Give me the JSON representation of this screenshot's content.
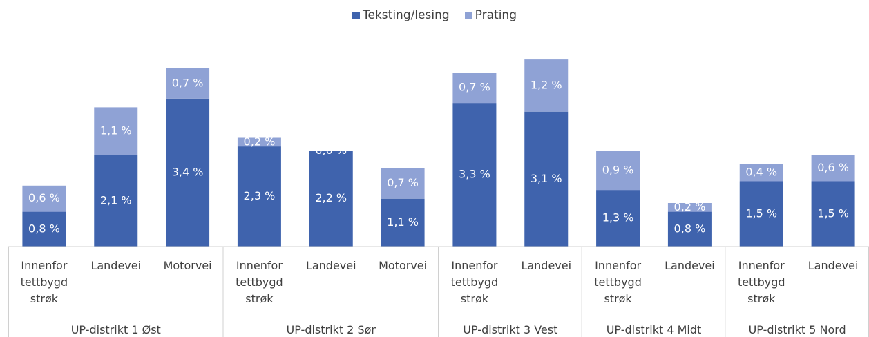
{
  "chart_data": {
    "type": "bar",
    "stacked": true,
    "legend": "top",
    "groups": [
      {
        "label": "UP-distrikt 1 Øst",
        "categories": [
          "Innenfor tettbygd strøk",
          "Landevei",
          "Motorvei"
        ]
      },
      {
        "label": "UP-distrikt 2 Sør",
        "categories": [
          "Innenfor tettbygd strøk",
          "Landevei",
          "Motorvei"
        ]
      },
      {
        "label": "UP-distrikt 3 Vest",
        "categories": [
          "Innenfor tettbygd strøk",
          "Landevei"
        ]
      },
      {
        "label": "UP-distrikt 4 Midt",
        "categories": [
          "Innenfor tettbygd strøk",
          "Landevei"
        ]
      },
      {
        "label": "UP-distrikt 5 Nord",
        "categories": [
          "Innenfor tettbygd strøk",
          "Landevei"
        ]
      }
    ],
    "series": [
      {
        "name": "Teksting/lesing",
        "color": "#3f63ad",
        "values": [
          0.8,
          2.1,
          3.4,
          2.3,
          2.2,
          1.1,
          3.3,
          3.1,
          1.3,
          0.8,
          1.5,
          1.5
        ],
        "value_labels": [
          "0,8 %",
          "2,1 %",
          "3,4 %",
          "2,3 %",
          "2,2 %",
          "1,1 %",
          "3,3 %",
          "3,1 %",
          "1,3 %",
          "0,8 %",
          "1,5 %",
          "1,5 %"
        ]
      },
      {
        "name": "Prating",
        "color": "#8fa2d5",
        "values": [
          0.6,
          1.1,
          0.7,
          0.2,
          0.0,
          0.7,
          0.7,
          1.2,
          0.9,
          0.2,
          0.4,
          0.6
        ],
        "value_labels": [
          "0,6 %",
          "1,1 %",
          "0,7 %",
          "0,2 %",
          "0,0 %",
          "0,7 %",
          "0,7 %",
          "1,2 %",
          "0,9 %",
          "0,2 %",
          "0,4 %",
          "0,6 %"
        ]
      }
    ]
  }
}
